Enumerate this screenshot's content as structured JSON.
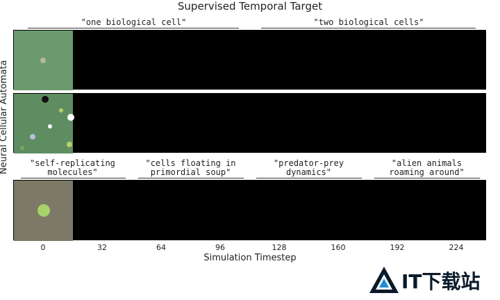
{
  "title": "Supervised Temporal Target",
  "ylabel": "Neural Cellular Automata",
  "xlabel": "Simulation Timestep",
  "xticks": [
    "0",
    "32",
    "64",
    "96",
    "128",
    "160",
    "192",
    "224"
  ],
  "prompts": {
    "top_left": "\"one biological cell\"",
    "top_right": "\"two biological cells\"",
    "b1": "\"self-replicating\nmolecules\"",
    "b2": "\"cells floating in\nprimordial soup\"",
    "b3": "\"predator-prey\ndynamics\"",
    "b4": "\"alien animals\nroaming around\""
  },
  "watermark": "IT下载站",
  "colors": {
    "green_frame": "#6b9a6e",
    "khaki_frame": "#7c7a66",
    "strip_bg": "#000000"
  }
}
